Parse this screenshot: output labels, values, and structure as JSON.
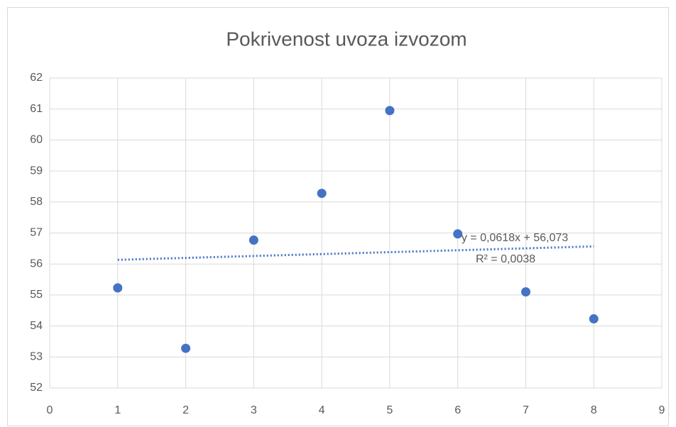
{
  "chart_data": {
    "type": "scatter",
    "title": "Pokrivenost uvoza izvozom",
    "x": [
      1,
      2,
      3,
      4,
      5,
      6,
      7,
      8
    ],
    "series": [
      {
        "color": "#4472c4",
        "values": [
          55.23,
          53.28,
          56.77,
          58.28,
          60.95,
          56.97,
          55.1,
          54.23
        ]
      }
    ],
    "xlim": [
      0,
      9
    ],
    "xticks": [
      0,
      1,
      2,
      3,
      4,
      5,
      6,
      7,
      8,
      9
    ],
    "ylim": [
      52,
      62
    ],
    "yticks": [
      52,
      53,
      54,
      55,
      56,
      57,
      58,
      59,
      60,
      61,
      62
    ],
    "grid": true,
    "trendline": {
      "slope": 0.0618,
      "intercept": 56.073,
      "equation": "y = 0,0618x + 56,073",
      "r2": "R² = 0,0038"
    }
  }
}
